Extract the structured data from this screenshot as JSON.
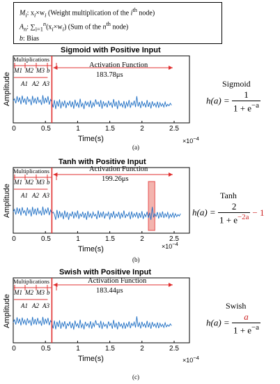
{
  "legend": {
    "line1": {
      "sym": "M",
      "sub": "i",
      "eq": ": x",
      "sub2": "i",
      "times": "×w",
      "sub3": "i",
      "text": " (Weight multiplication of the ",
      "sup_var": "i",
      "sup": "th",
      "tail": " node)"
    },
    "line2": {
      "sym": "A",
      "sub": "n",
      "eq": ": ∑",
      "range": "i=1",
      "up": "n",
      "expr": "(x",
      "sub2": "i",
      "times": "×w",
      "sub3": "i",
      "text": ") (Sum of the ",
      "sup_var": "n",
      "sup": "th",
      "tail": " node)"
    },
    "line3": {
      "sym": "b",
      "text": ": Bias"
    }
  },
  "common": {
    "ylabel": "Amplitude",
    "xlabel": "Time(s)",
    "xscale": "×10",
    "xscale_exp": "−4",
    "x_ticks": [
      "0",
      "0.5",
      "1",
      "1.5",
      "2",
      "2.5"
    ],
    "multiplications": "Multiplications",
    "activation": "Activation Function"
  },
  "chart_data": [
    {
      "type": "line",
      "title": "Sigmoid with Positive Input",
      "sublabel": "(a)",
      "duration": "183.78μs",
      "xlabel": "Time(s)",
      "ylabel": "Amplitude",
      "xlim": [
        0,
        2.5
      ],
      "x_unit_scale": "1e-4",
      "x": [
        0.0,
        0.02,
        0.04,
        0.06,
        0.08,
        0.1,
        0.12,
        0.14,
        0.16,
        0.18,
        0.2,
        0.22,
        0.24,
        0.26,
        0.28,
        0.3,
        0.32,
        0.34,
        0.36,
        0.38,
        0.4,
        0.42,
        0.44,
        0.46,
        0.48,
        0.5,
        0.52,
        0.54,
        0.56,
        0.58,
        0.6,
        0.62,
        0.64,
        0.66,
        0.68,
        0.7,
        0.72,
        0.74,
        0.76,
        0.78,
        0.8,
        0.82,
        0.84,
        0.86,
        0.88,
        0.9,
        0.92,
        0.94,
        0.96,
        0.98,
        1.0,
        1.02,
        1.04,
        1.06,
        1.08,
        1.1,
        1.12,
        1.14,
        1.16,
        1.18,
        1.2,
        1.22,
        1.24,
        1.26,
        1.28,
        1.3,
        1.32,
        1.34,
        1.36,
        1.38,
        1.4,
        1.42,
        1.44,
        1.46,
        1.48,
        1.5,
        1.52,
        1.54,
        1.56,
        1.58,
        1.6,
        1.62,
        1.64,
        1.66,
        1.68,
        1.7,
        1.72,
        1.74,
        1.76,
        1.78,
        1.8,
        1.82,
        1.84,
        1.86,
        1.88,
        1.9,
        1.92,
        1.94,
        1.96,
        1.98,
        2.0,
        2.02,
        2.04,
        2.06,
        2.08,
        2.1,
        2.12,
        2.14,
        2.16,
        2.18,
        2.2,
        2.22,
        2.24,
        2.26,
        2.28,
        2.3,
        2.32,
        2.34,
        2.36,
        2.38,
        2.4,
        2.42,
        2.44,
        2.46
      ],
      "y": [
        0.55,
        0.62,
        0.48,
        0.7,
        0.52,
        0.66,
        0.45,
        0.72,
        0.5,
        0.63,
        0.44,
        0.69,
        0.53,
        0.6,
        0.42,
        0.71,
        0.49,
        0.64,
        0.46,
        0.68,
        0.51,
        0.58,
        0.43,
        0.73,
        0.47,
        0.65,
        0.5,
        0.7,
        0.44,
        0.6,
        0.52,
        0.35,
        0.58,
        0.3,
        0.55,
        0.38,
        0.6,
        0.32,
        0.52,
        0.4,
        0.57,
        0.33,
        0.5,
        0.42,
        0.56,
        0.36,
        0.53,
        0.31,
        0.59,
        0.4,
        0.5,
        0.34,
        0.62,
        0.38,
        0.48,
        0.3,
        0.55,
        0.42,
        0.51,
        0.36,
        0.57,
        0.33,
        0.5,
        0.39,
        0.6,
        0.45,
        0.52,
        0.37,
        0.58,
        0.31,
        0.54,
        0.4,
        0.49,
        0.35,
        0.56,
        0.42,
        0.5,
        0.34,
        0.61,
        0.38,
        0.53,
        0.3,
        0.57,
        0.4,
        0.48,
        0.36,
        0.55,
        0.32,
        0.51,
        0.39,
        0.58,
        0.34,
        0.5,
        0.42,
        0.56,
        0.36,
        0.7,
        0.38,
        0.52,
        0.33,
        0.55,
        0.4,
        0.49,
        0.35,
        0.58,
        0.37,
        0.51,
        0.32,
        0.54,
        0.4,
        0.48,
        0.36,
        0.53,
        0.34,
        0.5,
        0.39,
        0.47,
        0.36,
        0.52,
        0.38,
        0.45,
        0.4,
        0.48,
        0.42
      ]
    },
    {
      "type": "line",
      "title": "Tanh with Positive Input",
      "sublabel": "(b)",
      "duration": "199.26μs",
      "xlabel": "Time(s)",
      "ylabel": "Amplitude",
      "xlim": [
        0,
        2.5
      ],
      "x_unit_scale": "1e-4",
      "x": [
        0.0,
        0.02,
        0.04,
        0.06,
        0.08,
        0.1,
        0.12,
        0.14,
        0.16,
        0.18,
        0.2,
        0.22,
        0.24,
        0.26,
        0.28,
        0.3,
        0.32,
        0.34,
        0.36,
        0.38,
        0.4,
        0.42,
        0.44,
        0.46,
        0.48,
        0.5,
        0.52,
        0.54,
        0.56,
        0.58,
        0.6,
        0.62,
        0.64,
        0.66,
        0.68,
        0.7,
        0.72,
        0.74,
        0.76,
        0.78,
        0.8,
        0.82,
        0.84,
        0.86,
        0.88,
        0.9,
        0.92,
        0.94,
        0.96,
        0.98,
        1.0,
        1.02,
        1.04,
        1.06,
        1.08,
        1.1,
        1.12,
        1.14,
        1.16,
        1.18,
        1.2,
        1.22,
        1.24,
        1.26,
        1.28,
        1.3,
        1.32,
        1.34,
        1.36,
        1.38,
        1.4,
        1.42,
        1.44,
        1.46,
        1.48,
        1.5,
        1.52,
        1.54,
        1.56,
        1.58,
        1.6,
        1.62,
        1.64,
        1.66,
        1.68,
        1.7,
        1.72,
        1.74,
        1.76,
        1.78,
        1.8,
        1.82,
        1.84,
        1.86,
        1.88,
        1.9,
        1.92,
        1.94,
        1.96,
        1.98,
        2.0,
        2.02,
        2.04,
        2.06,
        2.08,
        2.1,
        2.12,
        2.14,
        2.16,
        2.18,
        2.2,
        2.22,
        2.24,
        2.26,
        2.28,
        2.3,
        2.32,
        2.34,
        2.36,
        2.38,
        2.4,
        2.42,
        2.44,
        2.46,
        2.48,
        2.5,
        2.52,
        2.54,
        2.56,
        2.58,
        2.6
      ],
      "y": [
        0.56,
        0.64,
        0.47,
        0.7,
        0.5,
        0.67,
        0.44,
        0.71,
        0.52,
        0.6,
        0.43,
        0.7,
        0.51,
        0.62,
        0.41,
        0.72,
        0.48,
        0.66,
        0.45,
        0.69,
        0.5,
        0.59,
        0.44,
        0.73,
        0.46,
        0.64,
        0.52,
        0.7,
        0.45,
        0.62,
        0.5,
        0.55,
        0.48,
        0.3,
        0.62,
        0.35,
        0.58,
        0.4,
        0.52,
        0.32,
        0.6,
        0.38,
        0.55,
        0.3,
        0.5,
        0.42,
        0.57,
        0.34,
        0.53,
        0.4,
        0.6,
        0.33,
        0.49,
        0.41,
        0.56,
        0.36,
        0.52,
        0.3,
        0.58,
        0.39,
        0.5,
        0.35,
        0.55,
        0.42,
        0.48,
        0.32,
        0.6,
        0.37,
        0.53,
        0.4,
        0.57,
        0.34,
        0.5,
        0.43,
        0.55,
        0.31,
        0.52,
        0.38,
        0.58,
        0.35,
        0.49,
        0.41,
        0.56,
        0.33,
        0.51,
        0.39,
        0.6,
        0.36,
        0.48,
        0.42,
        0.54,
        0.32,
        0.57,
        0.38,
        0.5,
        0.4,
        0.55,
        0.34,
        0.52,
        0.37,
        0.58,
        0.33,
        0.49,
        0.4,
        0.56,
        0.36,
        0.53,
        0.3,
        0.72,
        0.38,
        0.5,
        0.41,
        0.55,
        0.34,
        0.52,
        0.38,
        0.57,
        0.36,
        0.5,
        0.4,
        0.54,
        0.35,
        0.48,
        0.39,
        0.52,
        0.37,
        0.5,
        0.4,
        0.47,
        0.42,
        0.5
      ],
      "highlight": {
        "x": [
          2.1,
          2.2
        ]
      }
    },
    {
      "type": "line",
      "title": "Swish with Positive Input",
      "sublabel": "(c)",
      "duration": "183.44μs",
      "xlabel": "Time(s)",
      "ylabel": "Amplitude",
      "xlim": [
        0,
        2.5
      ],
      "x_unit_scale": "1e-4",
      "x": [
        0.0,
        0.02,
        0.04,
        0.06,
        0.08,
        0.1,
        0.12,
        0.14,
        0.16,
        0.18,
        0.2,
        0.22,
        0.24,
        0.26,
        0.28,
        0.3,
        0.32,
        0.34,
        0.36,
        0.38,
        0.4,
        0.42,
        0.44,
        0.46,
        0.48,
        0.5,
        0.52,
        0.54,
        0.56,
        0.58,
        0.6,
        0.62,
        0.64,
        0.66,
        0.68,
        0.7,
        0.72,
        0.74,
        0.76,
        0.78,
        0.8,
        0.82,
        0.84,
        0.86,
        0.88,
        0.9,
        0.92,
        0.94,
        0.96,
        0.98,
        1.0,
        1.02,
        1.04,
        1.06,
        1.08,
        1.1,
        1.12,
        1.14,
        1.16,
        1.18,
        1.2,
        1.22,
        1.24,
        1.26,
        1.28,
        1.3,
        1.32,
        1.34,
        1.36,
        1.38,
        1.4,
        1.42,
        1.44,
        1.46,
        1.48,
        1.5,
        1.52,
        1.54,
        1.56,
        1.58,
        1.6,
        1.62,
        1.64,
        1.66,
        1.68,
        1.7,
        1.72,
        1.74,
        1.76,
        1.78,
        1.8,
        1.82,
        1.84,
        1.86,
        1.88,
        1.9,
        1.92,
        1.94,
        1.96,
        1.98,
        2.0,
        2.02,
        2.04,
        2.06,
        2.08,
        2.1,
        2.12,
        2.14,
        2.16,
        2.18,
        2.2,
        2.22,
        2.24,
        2.26,
        2.28,
        2.3,
        2.32,
        2.34,
        2.36,
        2.38,
        2.4,
        2.42,
        2.44,
        2.46
      ],
      "y": [
        0.54,
        0.63,
        0.47,
        0.71,
        0.51,
        0.66,
        0.44,
        0.7,
        0.5,
        0.62,
        0.45,
        0.68,
        0.52,
        0.61,
        0.43,
        0.72,
        0.48,
        0.65,
        0.46,
        0.69,
        0.5,
        0.59,
        0.43,
        0.72,
        0.47,
        0.66,
        0.51,
        0.69,
        0.45,
        0.6,
        0.52,
        0.34,
        0.6,
        0.31,
        0.56,
        0.39,
        0.61,
        0.33,
        0.53,
        0.41,
        0.58,
        0.32,
        0.5,
        0.43,
        0.57,
        0.35,
        0.52,
        0.3,
        0.6,
        0.41,
        0.5,
        0.35,
        0.63,
        0.37,
        0.49,
        0.31,
        0.56,
        0.42,
        0.5,
        0.37,
        0.58,
        0.33,
        0.52,
        0.4,
        0.61,
        0.46,
        0.5,
        0.36,
        0.59,
        0.32,
        0.53,
        0.41,
        0.48,
        0.35,
        0.57,
        0.43,
        0.51,
        0.33,
        0.62,
        0.37,
        0.52,
        0.31,
        0.56,
        0.41,
        0.49,
        0.35,
        0.54,
        0.33,
        0.5,
        0.4,
        0.57,
        0.35,
        0.51,
        0.43,
        0.55,
        0.37,
        0.74,
        0.39,
        0.53,
        0.34,
        0.56,
        0.41,
        0.5,
        0.36,
        0.59,
        0.38,
        0.52,
        0.33,
        0.55,
        0.41,
        0.49,
        0.37,
        0.54,
        0.35,
        0.51,
        0.4,
        0.48,
        0.37,
        0.53,
        0.39,
        0.46,
        0.41,
        0.49,
        0.43
      ]
    }
  ],
  "formulas": [
    {
      "name": "Sigmoid",
      "lhs": "h(a) = ",
      "num": "1",
      "den_base": "1 + e",
      "den_exp": "−a",
      "extra": ""
    },
    {
      "name": "Tanh",
      "lhs": "h(a) = ",
      "num": "2",
      "den_base": "1 + e",
      "den_exp": "−2a",
      "extra": "− 1"
    },
    {
      "name": "Swish",
      "lhs": "h(a) = ",
      "num": "a",
      "den_base": "1 + e",
      "den_exp": "−a",
      "extra": ""
    }
  ],
  "segments": {
    "top": [
      "M1",
      "M2",
      "M3",
      "b"
    ],
    "bottom": [
      "A1",
      "A2",
      "A3"
    ]
  },
  "colors": {
    "signal": "#1f6fc4",
    "marker": "#e03030",
    "highlight": "#f2a8a0",
    "axis": "#000000"
  }
}
